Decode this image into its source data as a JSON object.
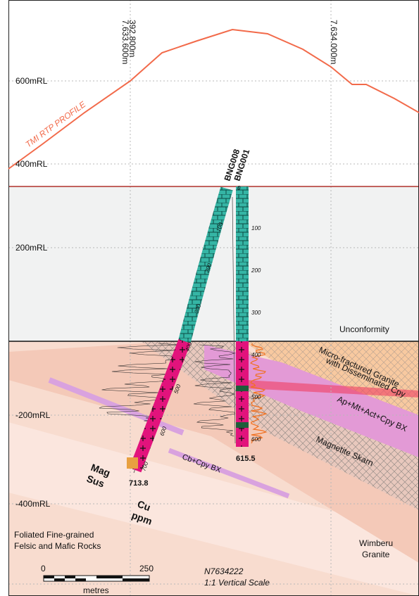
{
  "northings": [
    "7.633.600m",
    "7.634.000m"
  ],
  "eastings": [
    "392.800m"
  ],
  "elevations": [
    "600mRL",
    "400mRL",
    "200mRL",
    "-200mRL",
    "-400mRL"
  ],
  "profile_label": "TMI RTP PROFILE",
  "drill_holes": [
    {
      "name": "BNG008",
      "end_depth": "713.8",
      "depth_marks": [
        "100",
        "200",
        "300",
        "400",
        "500",
        "600",
        "700"
      ]
    },
    {
      "name": "BNG001",
      "end_depth": "615.5",
      "depth_marks": [
        "0",
        "100",
        "200",
        "300",
        "400",
        "500",
        "600"
      ]
    }
  ],
  "unconformity": "Unconformity",
  "units": [
    {
      "label": [
        "Micro-fractured Granite",
        "with Disseminated Cpy"
      ]
    },
    {
      "label": [
        "Ap+Mt+Act+Cpy BX"
      ]
    },
    {
      "label": [
        "Magnetite Skarn"
      ]
    },
    {
      "label": [
        "Cb+Cpy BX"
      ]
    },
    {
      "label": [
        "Foliated Fine-grained",
        "Felsic and Mafic Rocks"
      ]
    },
    {
      "label": [
        "Wimberu",
        "Granite"
      ]
    }
  ],
  "log_labels": [
    {
      "label": [
        "Mag",
        "Sus"
      ]
    },
    {
      "label": [
        "Cu",
        "ppm"
      ]
    }
  ],
  "scale_bar": {
    "start": "0",
    "end": "250",
    "unit": "metres"
  },
  "section": {
    "name": "N7634222",
    "scale": "1:1 Vertical Scale"
  }
}
